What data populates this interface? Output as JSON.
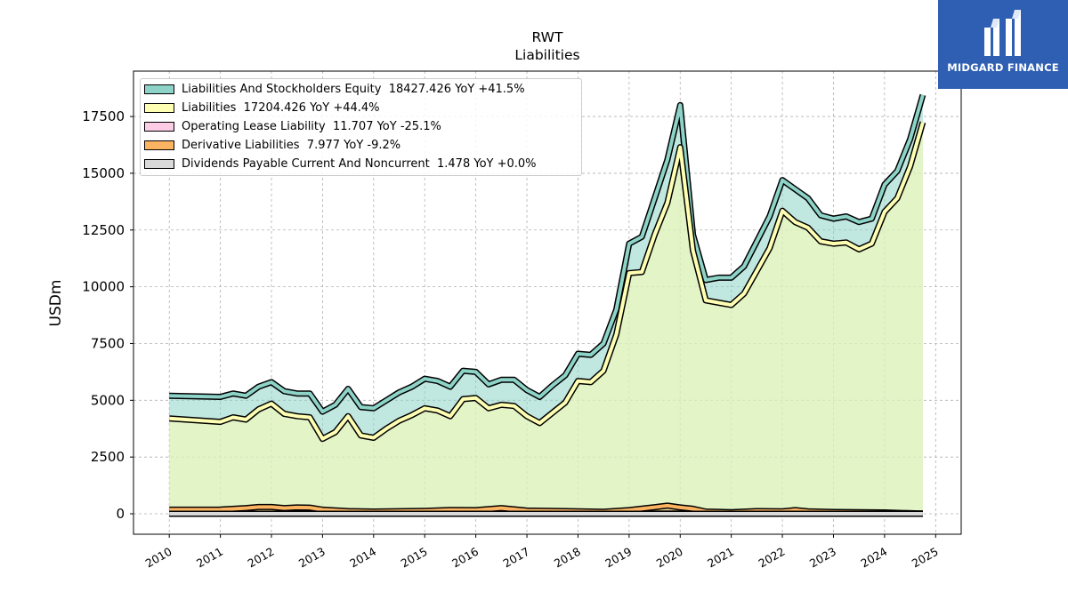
{
  "chart_data": {
    "type": "area",
    "title": "RWT",
    "subtitle": "Liabilities",
    "ylabel": "USDm",
    "xlabel": "",
    "xlim": [
      2009.3,
      2025.5
    ],
    "ylim": [
      -900,
      19500
    ],
    "xticks": [
      "2010",
      "2011",
      "2012",
      "2013",
      "2014",
      "2015",
      "2016",
      "2017",
      "2018",
      "2019",
      "2020",
      "2021",
      "2022",
      "2023",
      "2024",
      "2025"
    ],
    "yticks": [
      "0",
      "2500",
      "5000",
      "7500",
      "10000",
      "12500",
      "15000",
      "17500"
    ],
    "grid": true,
    "legend_position": "top-left",
    "series": [
      {
        "name": "Liabilities And Stockholders Equity  18427.426 YoY +41.5%",
        "color": "#8dd3c7",
        "x": [
          2010.0,
          2011.0,
          2011.25,
          2011.5,
          2011.75,
          2012.0,
          2012.25,
          2012.5,
          2012.75,
          2013.0,
          2013.25,
          2013.5,
          2013.75,
          2014.0,
          2014.25,
          2014.5,
          2014.75,
          2015.0,
          2015.25,
          2015.5,
          2015.75,
          2016.0,
          2016.25,
          2016.5,
          2016.75,
          2017.0,
          2017.25,
          2017.5,
          2017.75,
          2018.0,
          2018.25,
          2018.5,
          2018.75,
          2019.0,
          2019.25,
          2019.5,
          2019.75,
          2020.0,
          2020.25,
          2020.5,
          2020.75,
          2021.0,
          2021.25,
          2021.5,
          2021.75,
          2022.0,
          2022.25,
          2022.5,
          2022.75,
          2023.0,
          2023.25,
          2023.5,
          2023.75,
          2024.0,
          2024.25,
          2024.5,
          2024.75
        ],
        "values": [
          5200,
          5150,
          5300,
          5200,
          5600,
          5800,
          5400,
          5300,
          5300,
          4500,
          4800,
          5500,
          4700,
          4650,
          5000,
          5350,
          5600,
          5950,
          5850,
          5600,
          6300,
          6250,
          5700,
          5900,
          5900,
          5450,
          5150,
          5650,
          6100,
          7050,
          7000,
          7500,
          9000,
          11900,
          12200,
          13900,
          15600,
          18000,
          12300,
          10300,
          10400,
          10400,
          10900,
          12000,
          13100,
          14700,
          14300,
          13900,
          13150,
          13000,
          13100,
          12850,
          13000,
          14500,
          15100,
          16500,
          18450
        ]
      },
      {
        "name": "Liabilities  17204.426 YoY +44.4%",
        "color": "#ffffb3",
        "x": [
          2010.0,
          2011.0,
          2011.25,
          2011.5,
          2011.75,
          2012.0,
          2012.25,
          2012.5,
          2012.75,
          2013.0,
          2013.25,
          2013.5,
          2013.75,
          2014.0,
          2014.25,
          2014.5,
          2014.75,
          2015.0,
          2015.25,
          2015.5,
          2015.75,
          2016.0,
          2016.25,
          2016.5,
          2016.75,
          2017.0,
          2017.25,
          2017.5,
          2017.75,
          2018.0,
          2018.25,
          2018.5,
          2018.75,
          2019.0,
          2019.25,
          2019.5,
          2019.75,
          2020.0,
          2020.25,
          2020.5,
          2020.75,
          2021.0,
          2021.25,
          2021.5,
          2021.75,
          2022.0,
          2022.25,
          2022.5,
          2022.75,
          2023.0,
          2023.25,
          2023.5,
          2023.75,
          2024.0,
          2024.25,
          2024.5,
          2024.75
        ],
        "values": [
          4200,
          4050,
          4250,
          4150,
          4600,
          4850,
          4400,
          4300,
          4250,
          3300,
          3600,
          4300,
          3450,
          3350,
          3750,
          4100,
          4350,
          4650,
          4550,
          4300,
          5050,
          5100,
          4650,
          4800,
          4750,
          4300,
          4000,
          4450,
          4900,
          5850,
          5800,
          6300,
          7900,
          10600,
          10650,
          12300,
          13700,
          16150,
          11600,
          9400,
          9300,
          9200,
          9700,
          10700,
          11700,
          13350,
          12850,
          12600,
          12000,
          11900,
          11950,
          11650,
          11900,
          13300,
          13900,
          15300,
          17250
        ]
      },
      {
        "name": "Operating Lease Liability  11.707 YoY -25.1%",
        "color": "#fccde5",
        "x": [
          2010.0,
          2024.75
        ],
        "values": [
          0,
          12
        ]
      },
      {
        "name": "Derivative Liabilities  7.977 YoY -9.2%",
        "color": "#fdb462",
        "x": [
          2010.0,
          2011.0,
          2011.5,
          2011.75,
          2012.0,
          2012.25,
          2012.5,
          2012.75,
          2013.0,
          2013.5,
          2014.0,
          2015.0,
          2015.5,
          2016.0,
          2016.5,
          2017.0,
          2018.0,
          2018.5,
          2019.0,
          2019.5,
          2019.75,
          2020.0,
          2020.25,
          2020.5,
          2021.0,
          2021.5,
          2022.0,
          2022.25,
          2022.5,
          2023.0,
          2024.0,
          2024.75
        ],
        "values": [
          180,
          190,
          250,
          300,
          300,
          250,
          280,
          270,
          180,
          120,
          100,
          130,
          170,
          160,
          250,
          140,
          110,
          90,
          160,
          290,
          360,
          280,
          220,
          100,
          70,
          120,
          110,
          160,
          110,
          80,
          60,
          8
        ]
      },
      {
        "name": "Dividends Payable Current And Noncurrent  1.478 YoY +0.0%",
        "color": "#d9d9d9",
        "x": [
          2010.0,
          2024.75
        ],
        "values": [
          1.5,
          1.5
        ]
      }
    ]
  },
  "logo": {
    "text": "MIDGARD FINANCE",
    "color": "#2f5fb3"
  }
}
